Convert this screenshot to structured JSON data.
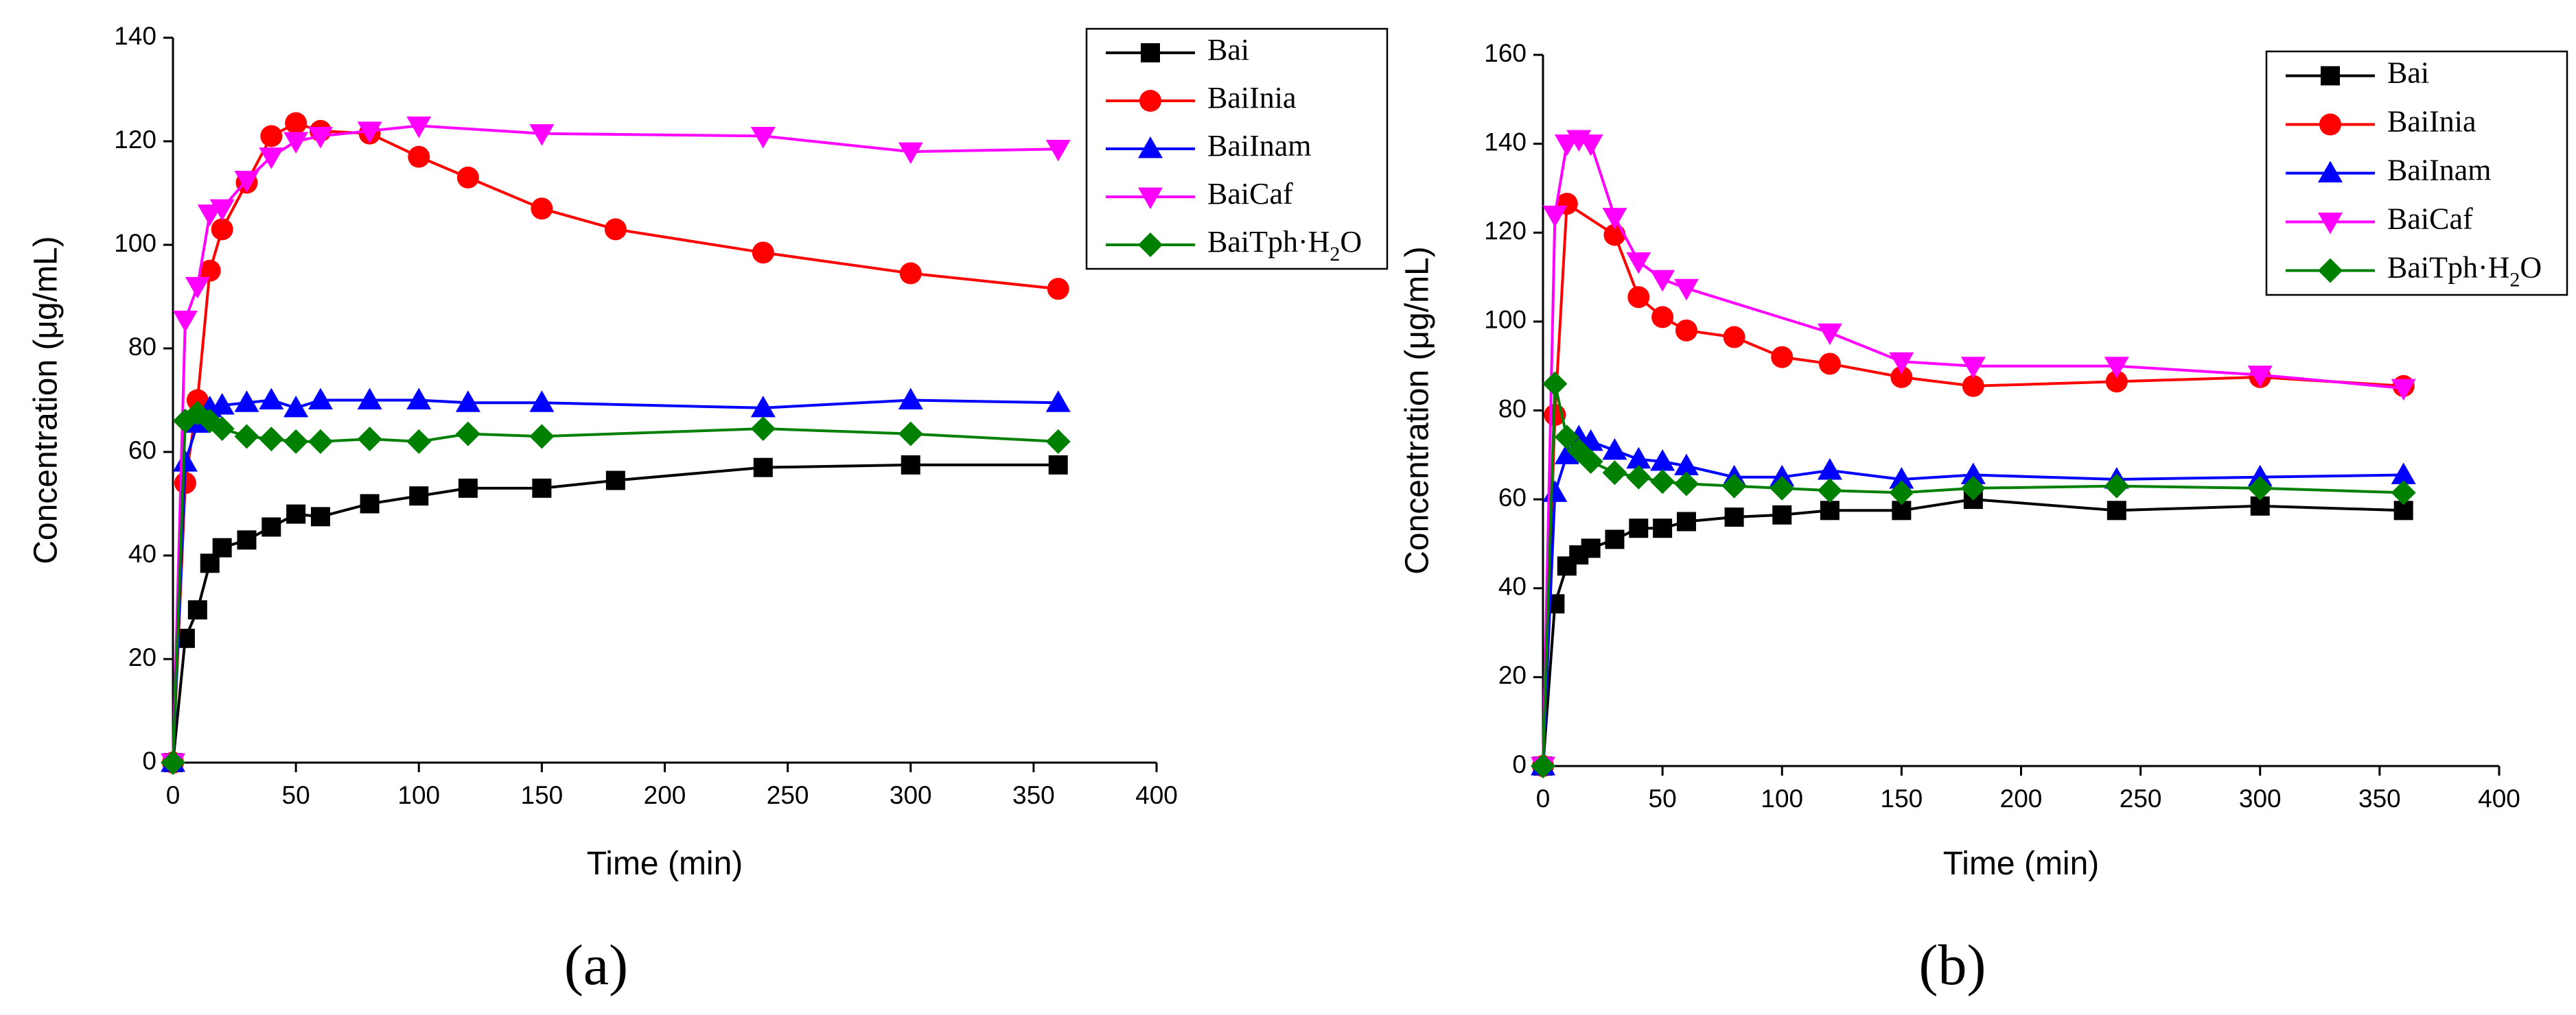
{
  "chart_data": [
    {
      "type": "line",
      "panel_label": "(a)",
      "xlabel": "Time (min)",
      "ylabel": "Concentration (μg/mL)",
      "xlim": [
        0,
        400
      ],
      "ylim": [
        0,
        140
      ],
      "xticks": [
        0,
        50,
        100,
        150,
        200,
        250,
        300,
        350,
        400
      ],
      "yticks": [
        0,
        20,
        40,
        60,
        80,
        100,
        120,
        140
      ],
      "grid": false,
      "legend_position": "top-right",
      "series": [
        {
          "name": "Bai",
          "color": "#000000",
          "marker": "square",
          "x": [
            0,
            5,
            10,
            15,
            20,
            30,
            40,
            50,
            60,
            80,
            100,
            120,
            150,
            180,
            240,
            300,
            360
          ],
          "y": [
            0,
            24,
            29.5,
            38.5,
            41.5,
            43,
            45.5,
            48,
            47.5,
            50,
            51.5,
            53,
            53,
            54.5,
            57,
            57.5,
            57.5
          ]
        },
        {
          "name": "BaiInia",
          "color": "#ff0000",
          "marker": "circle",
          "x": [
            0,
            5,
            10,
            15,
            20,
            30,
            40,
            50,
            60,
            80,
            100,
            120,
            150,
            180,
            240,
            300,
            360
          ],
          "y": [
            0,
            54,
            70,
            95,
            103,
            112,
            121,
            123.5,
            122,
            121.5,
            117,
            113,
            107,
            103,
            98.5,
            94.5,
            91.5
          ]
        },
        {
          "name": "BaiInam",
          "color": "#0000ff",
          "marker": "triangle-up",
          "x": [
            0,
            5,
            10,
            15,
            20,
            30,
            40,
            50,
            60,
            80,
            100,
            120,
            150,
            240,
            300,
            360
          ],
          "y": [
            0,
            58,
            65.5,
            68.5,
            69,
            69.5,
            70,
            68.5,
            70,
            70,
            70,
            69.5,
            69.5,
            68.5,
            70,
            69.5
          ]
        },
        {
          "name": "BaiCaf",
          "color": "#ff00ff",
          "marker": "triangle-down",
          "x": [
            0,
            5,
            10,
            15,
            20,
            30,
            40,
            50,
            60,
            80,
            100,
            150,
            240,
            300,
            360
          ],
          "y": [
            0,
            85.5,
            92,
            106,
            107,
            112.5,
            117,
            120,
            121,
            122,
            123,
            121.5,
            121,
            118,
            118.5
          ]
        },
        {
          "name": "BaiTph·H2O",
          "color": "#008000",
          "marker": "diamond",
          "x": [
            0,
            5,
            10,
            15,
            20,
            30,
            40,
            50,
            60,
            80,
            100,
            120,
            150,
            240,
            300,
            360
          ],
          "y": [
            0,
            66,
            67.5,
            66,
            64.5,
            63,
            62.5,
            62,
            62,
            62.5,
            62,
            63.5,
            63,
            64.5,
            63.5,
            62
          ]
        }
      ]
    },
    {
      "type": "line",
      "panel_label": "(b)",
      "xlabel": "Time (min)",
      "ylabel": "Concentration (μg/mL)",
      "xlim": [
        0,
        400
      ],
      "ylim": [
        0,
        160
      ],
      "xticks": [
        0,
        50,
        100,
        150,
        200,
        250,
        300,
        350,
        400
      ],
      "yticks": [
        0,
        20,
        40,
        60,
        80,
        100,
        120,
        140,
        160
      ],
      "grid": false,
      "legend_position": "top-right",
      "series": [
        {
          "name": "Bai",
          "color": "#000000",
          "marker": "square",
          "x": [
            0,
            5,
            10,
            15,
            20,
            30,
            40,
            50,
            60,
            80,
            100,
            120,
            150,
            180,
            240,
            300,
            360
          ],
          "y": [
            0,
            36.5,
            45,
            47.5,
            49,
            51,
            53.5,
            53.5,
            55,
            56,
            56.5,
            57.5,
            57.5,
            60,
            57.5,
            58.5,
            57.5
          ]
        },
        {
          "name": "BaiInia",
          "color": "#ff0000",
          "marker": "circle",
          "x": [
            0,
            5,
            10,
            30,
            40,
            50,
            60,
            80,
            100,
            120,
            150,
            180,
            240,
            300,
            360
          ],
          "y": [
            0,
            79,
            126.5,
            119.5,
            105.5,
            101,
            98,
            96.5,
            92,
            90.5,
            87.5,
            85.5,
            86.5,
            87.5,
            85.5
          ]
        },
        {
          "name": "BaiInam",
          "color": "#0000ff",
          "marker": "triangle-up",
          "x": [
            0,
            5,
            10,
            15,
            20,
            30,
            40,
            50,
            60,
            80,
            100,
            120,
            150,
            180,
            240,
            300,
            360
          ],
          "y": [
            0,
            61.5,
            70,
            74,
            73,
            71,
            69,
            68.5,
            67.5,
            65,
            65,
            66.5,
            64.5,
            65.5,
            64.5,
            65,
            65.5
          ]
        },
        {
          "name": "BaiCaf",
          "color": "#ff00ff",
          "marker": "triangle-down",
          "x": [
            0,
            5,
            10,
            15,
            20,
            30,
            40,
            50,
            60,
            120,
            150,
            180,
            240,
            300,
            360
          ],
          "y": [
            0,
            124,
            140,
            141,
            140,
            123.5,
            113.5,
            109.5,
            107.5,
            97.5,
            91,
            90,
            90,
            88,
            85
          ]
        },
        {
          "name": "BaiTph·H2O",
          "color": "#008000",
          "marker": "diamond",
          "x": [
            0,
            5,
            10,
            15,
            20,
            30,
            40,
            50,
            60,
            80,
            100,
            120,
            150,
            180,
            240,
            300,
            360
          ],
          "y": [
            0,
            86,
            74,
            71,
            68.5,
            66,
            65,
            64,
            63.5,
            63,
            62.5,
            62,
            61.5,
            62.5,
            63,
            62.5,
            61.5
          ]
        }
      ]
    }
  ]
}
